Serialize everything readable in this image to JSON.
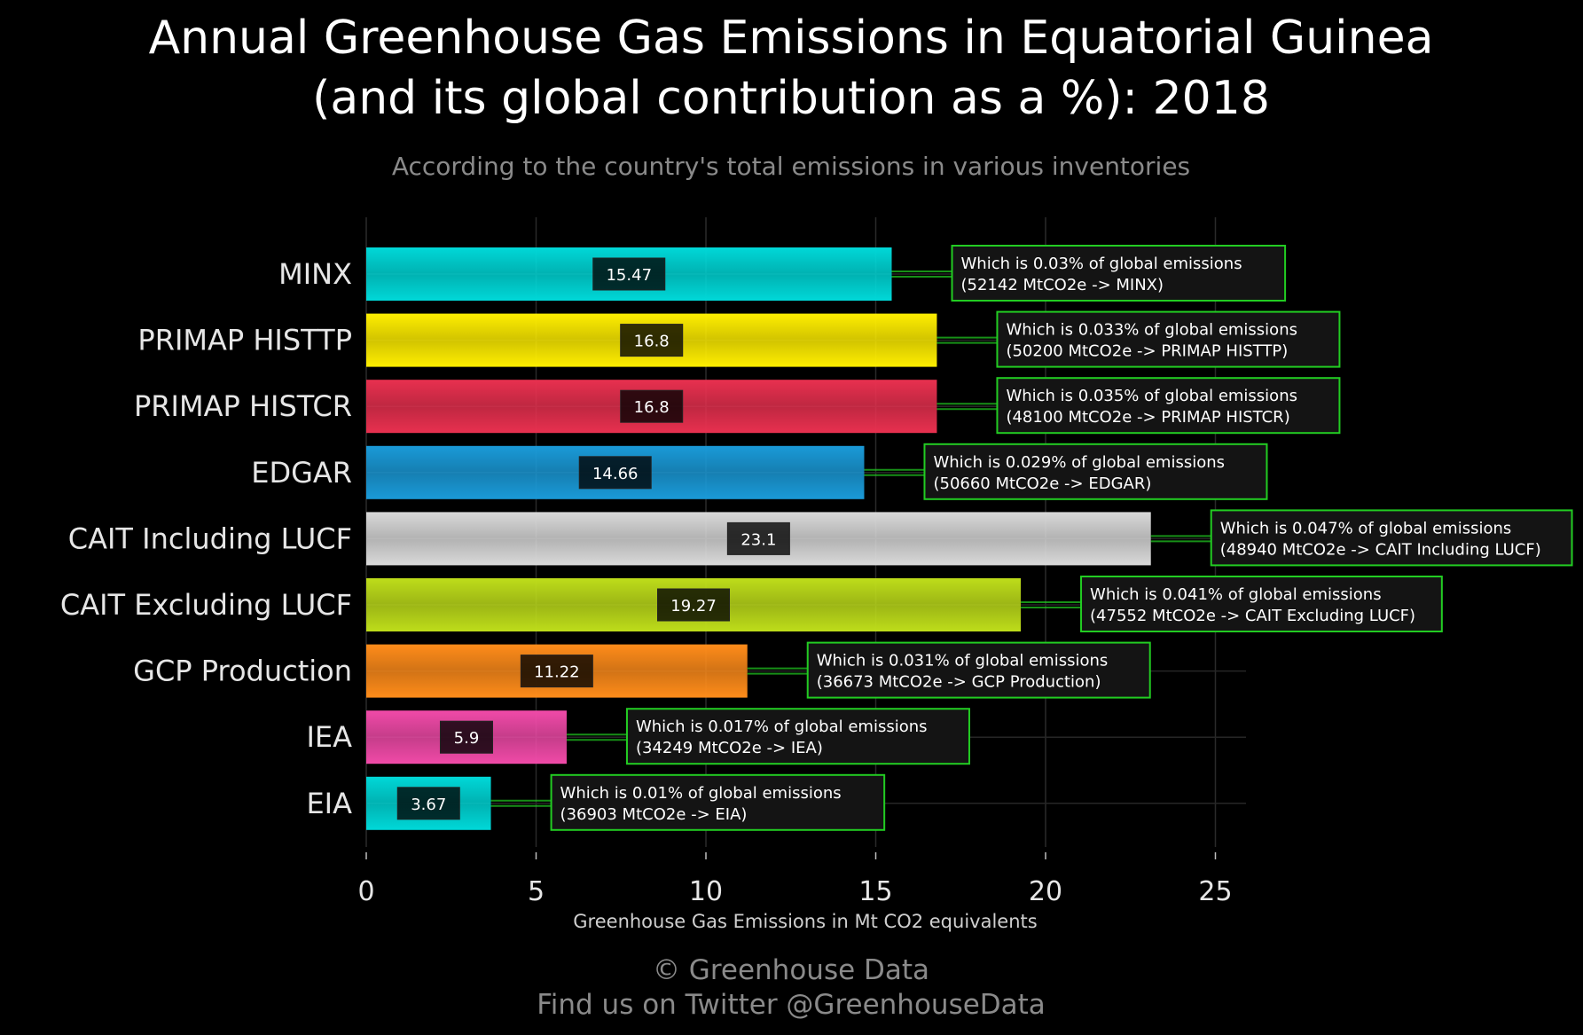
{
  "title_line1": "Annual Greenhouse Gas Emissions in Equatorial Guinea",
  "title_line2": "(and its global contribution as a %): 2018",
  "subtitle": "According to the country's total emissions in various inventories",
  "footer_line1": "© Greenhouse Data",
  "footer_line2": "Find us on Twitter @GreenhouseData",
  "chart_data": {
    "type": "bar",
    "orientation": "horizontal",
    "xlabel": "Greenhouse Gas Emissions in Mt CO2 equivalents",
    "ylabel": "",
    "xlim": [
      0,
      26
    ],
    "xticks": [
      0,
      5,
      10,
      15,
      20,
      25
    ],
    "grid": true,
    "categories": [
      "MINX",
      "PRIMAP HISTTP",
      "PRIMAP HISTCR",
      "EDGAR",
      "CAIT Including LUCF",
      "CAIT Excluding LUCF",
      "GCP Production",
      "IEA",
      "EIA"
    ],
    "values": [
      15.47,
      16.8,
      16.8,
      14.66,
      23.1,
      19.27,
      11.22,
      5.9,
      3.67
    ],
    "colors": [
      "#00d8d8",
      "#ffee00",
      "#e8304f",
      "#1a9ad8",
      "#d9d9d9",
      "#bedd1a",
      "#ff8c1a",
      "#f04aa8",
      "#00d8d8"
    ],
    "annotations": [
      {
        "line1": "Which is 0.03% of global emissions",
        "line2": "(52142 MtCO2e -> MINX)"
      },
      {
        "line1": "Which is 0.033% of global emissions",
        "line2": "(50200 MtCO2e -> PRIMAP HISTTP)"
      },
      {
        "line1": "Which is 0.035% of global emissions",
        "line2": "(48100 MtCO2e -> PRIMAP HISTCR)"
      },
      {
        "line1": "Which is 0.029% of global emissions",
        "line2": "(50660 MtCO2e -> EDGAR)"
      },
      {
        "line1": "Which is 0.047% of global emissions",
        "line2": "(48940 MtCO2e -> CAIT Including LUCF)"
      },
      {
        "line1": "Which is 0.041% of global emissions",
        "line2": "(47552 MtCO2e -> CAIT Excluding LUCF)"
      },
      {
        "line1": "Which is 0.031% of global emissions",
        "line2": "(36673 MtCO2e -> GCP Production)"
      },
      {
        "line1": "Which is 0.017% of global emissions",
        "line2": "(34249 MtCO2e -> IEA)"
      },
      {
        "line1": "Which is 0.01% of global emissions",
        "line2": "(36903 MtCO2e -> EIA)"
      }
    ],
    "annotation_border_color": "#22cc22"
  }
}
